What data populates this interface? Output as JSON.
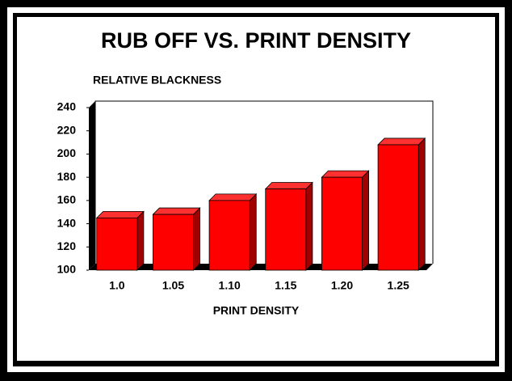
{
  "chart_data": {
    "type": "bar3d",
    "title": "RUB OFF VS. PRINT DENSITY",
    "y_label": "RELATIVE BLACKNESS",
    "x_label": "PRINT DENSITY",
    "categories": [
      "1.0",
      "1.05",
      "1.10",
      "1.15",
      "1.20",
      "1.25"
    ],
    "values": [
      145,
      148,
      160,
      170,
      180,
      208
    ],
    "color": "#ff0000",
    "ylim": [
      100,
      240
    ],
    "yticks": [
      100,
      120,
      140,
      160,
      180,
      200,
      220,
      240
    ],
    "grid": false
  }
}
